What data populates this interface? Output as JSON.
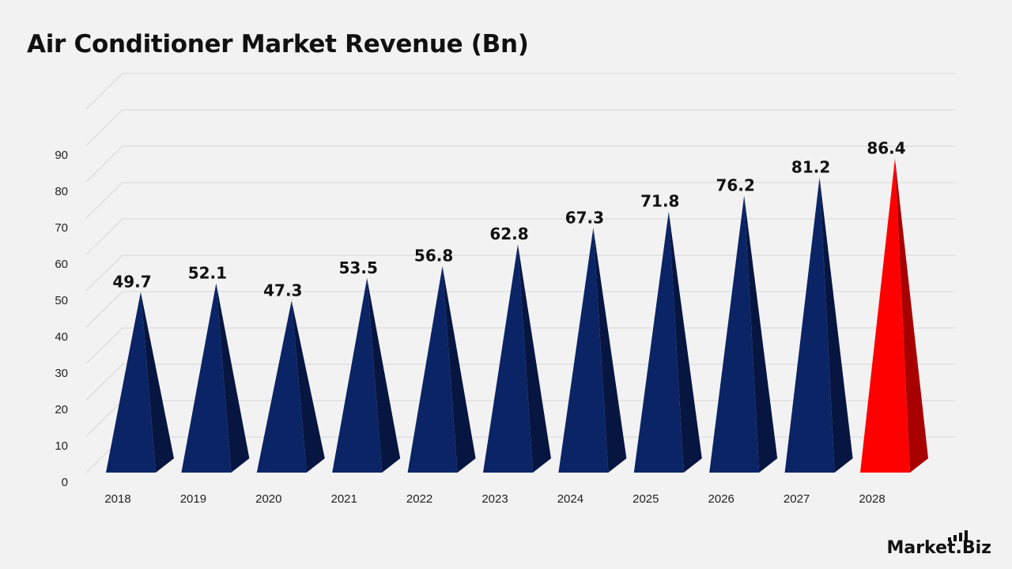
{
  "chart_data": {
    "type": "bar",
    "title": "Air Conditioner Market Revenue (Bn)",
    "categories": [
      "2018",
      "2019",
      "2020",
      "2021",
      "2022",
      "2023",
      "2024",
      "2025",
      "2026",
      "2027",
      "2028"
    ],
    "values": [
      49.7,
      52.1,
      47.3,
      53.5,
      56.8,
      62.8,
      67.3,
      71.8,
      76.2,
      81.2,
      86.4
    ],
    "value_labels": [
      "49.7",
      "52.1",
      "47.3",
      "53.5",
      "56.8",
      "62.8",
      "67.3",
      "71.8",
      "76.2",
      "81.2",
      "86.4"
    ],
    "y_ticks": [
      "0",
      "10",
      "20",
      "30",
      "40",
      "50",
      "60",
      "70",
      "80",
      "90"
    ],
    "ylim": [
      0,
      100
    ],
    "grid": true,
    "xlabel": "",
    "ylabel": "",
    "colors": {
      "base_front": "#0a2466",
      "base_side": "#061640",
      "highlight_front": "#ff0000",
      "highlight_side": "#a80000"
    },
    "highlight_category": "2028"
  },
  "brand": {
    "logo_text": "Market.Biz"
  }
}
